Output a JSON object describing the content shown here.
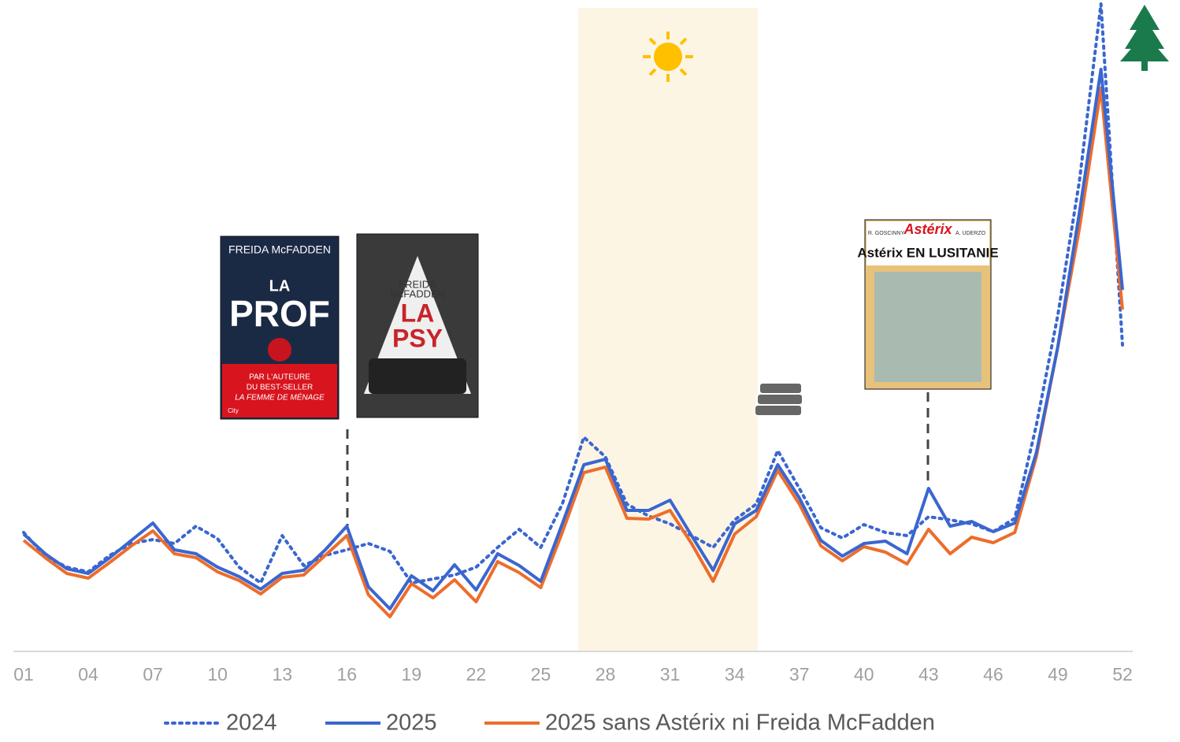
{
  "chart_data": {
    "type": "line",
    "categories": [
      "01",
      null,
      null,
      "04",
      null,
      null,
      "07",
      null,
      null,
      "10",
      null,
      null,
      "13",
      null,
      null,
      "16",
      null,
      null,
      "19",
      null,
      null,
      "22",
      null,
      null,
      "25",
      null,
      null,
      "28",
      null,
      null,
      "31",
      null,
      null,
      "34",
      null,
      null,
      "37",
      null,
      null,
      "40",
      null,
      null,
      "43",
      null,
      null,
      "46",
      null,
      null,
      "49",
      null,
      null,
      "52"
    ],
    "ylim": [
      0,
      827
    ],
    "legend": "bottom",
    "series": [
      {
        "name": "2024",
        "color": "#3a66d0",
        "dash": "dotted",
        "values": [
          151,
          121,
          107,
          101,
          122,
          137,
          142,
          137,
          159,
          143,
          107,
          87,
          147,
          109,
          122,
          129,
          137,
          127,
          87,
          92,
          97,
          107,
          132,
          155,
          132,
          187,
          272,
          247,
          187,
          172,
          162,
          147,
          132,
          167,
          187,
          255,
          207,
          157,
          144,
          161,
          151,
          147,
          171,
          167,
          162,
          152,
          169,
          287,
          427,
          597,
          822,
          389
        ]
      },
      {
        "name": "2025",
        "color": "#3a66d0",
        "dash": "solid",
        "values": [
          149,
          124,
          105,
          99,
          119,
          141,
          163,
          129,
          124,
          107,
          95,
          79,
          99,
          103,
          129,
          159,
          82,
          54,
          96,
          77,
          110,
          78,
          124,
          109,
          89,
          162,
          237,
          244,
          179,
          179,
          192,
          147,
          103,
          162,
          179,
          237,
          195,
          141,
          121,
          137,
          140,
          124,
          207,
          159,
          165,
          152,
          163,
          252,
          387,
          557,
          739,
          459
        ]
      },
      {
        "name": "2025 sans Astérix ni Freida McFadden",
        "color": "#ed6d2b",
        "dash": "solid",
        "values": [
          141,
          119,
          99,
          93,
          113,
          134,
          153,
          124,
          119,
          101,
          90,
          73,
          94,
          97,
          122,
          147,
          72,
          44,
          86,
          68,
          91,
          63,
          114,
          100,
          81,
          151,
          227,
          234,
          169,
          168,
          179,
          137,
          89,
          149,
          171,
          230,
          187,
          134,
          115,
          133,
          126,
          111,
          155,
          124,
          145,
          138,
          151,
          247,
          387,
          537,
          715,
          434
        ]
      }
    ],
    "covers": {
      "prof": {
        "author": "FREIDA McFADDEN",
        "title1": "LA",
        "title2": "PROF",
        "tag1": "PAR L'AUTEURE",
        "tag2": "DU BEST-SELLER",
        "tag3": "LA FEMME DE MÉNAGE",
        "publisher": "City"
      },
      "psy": {
        "author1": "FREIDA",
        "author2": "McFADDEN",
        "title1": "LA",
        "title2": "PSY"
      },
      "asterix": {
        "authors1": "R. GOSCINNY",
        "brand": "Astérix",
        "authors2": "A. UDERZO",
        "title": "Astérix EN LUSITANIE"
      }
    }
  }
}
